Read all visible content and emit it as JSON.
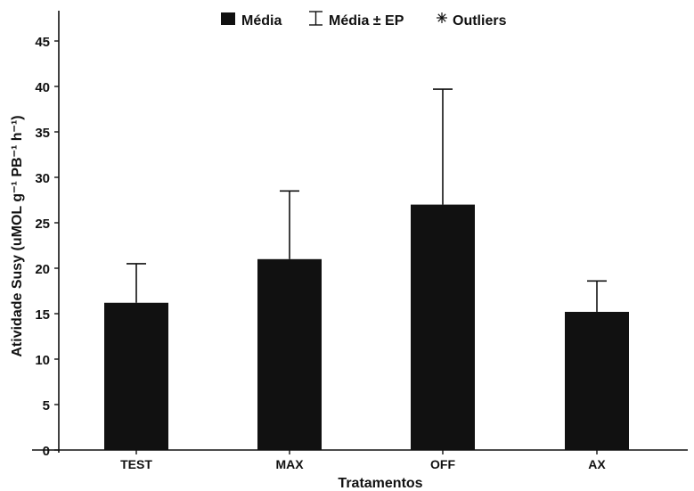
{
  "chart_data": {
    "type": "bar",
    "categories": [
      "TEST",
      "MAX",
      "OFF",
      "AX"
    ],
    "series": [
      {
        "name": "Média",
        "values": [
          16.2,
          21.0,
          27.0,
          15.2
        ],
        "error_upper": [
          20.5,
          28.5,
          39.7,
          18.6
        ]
      }
    ],
    "xlabel": "Tratamentos",
    "ylabel": "Atividade Susy (uMOL g⁻¹ PB⁻¹ h⁻¹)",
    "ylim": [
      0,
      45
    ],
    "yticks": [
      "0",
      "5",
      "10",
      "15",
      "20",
      "25",
      "30",
      "35",
      "40",
      "45"
    ],
    "grid": false,
    "legend": {
      "position": "top-center",
      "entries": [
        {
          "label": "Média",
          "marker": "filled-square"
        },
        {
          "label": "Média ± EP",
          "marker": "error-bar"
        },
        {
          "label": "Outliers",
          "marker": "asterisk"
        }
      ]
    },
    "colors": {
      "bar": "#111111",
      "axis": "#111111",
      "text": "#111111"
    }
  }
}
